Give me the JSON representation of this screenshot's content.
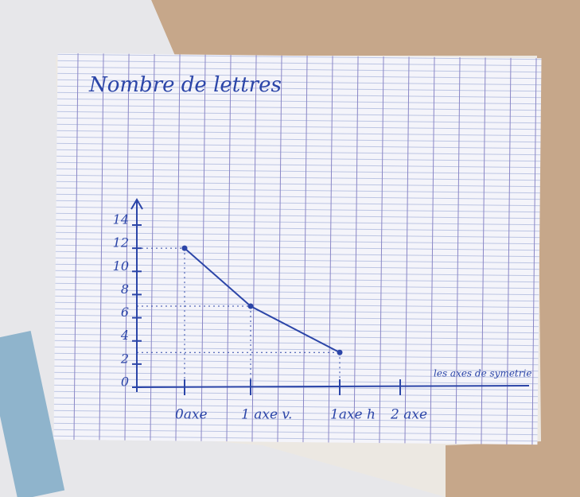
{
  "chart_data": {
    "type": "line",
    "title": "Nombre de lettres",
    "categories": [
      "0axe",
      "1 axe v.",
      "1axe h",
      "2 axe"
    ],
    "values": [
      12,
      7,
      3,
      null
    ],
    "color": "#2b45a8",
    "x_label": "les axes de symetrie",
    "ylim": [
      0,
      14
    ],
    "yticks": [
      0,
      2,
      4,
      6,
      8,
      10,
      12,
      14
    ],
    "grid": false
  }
}
